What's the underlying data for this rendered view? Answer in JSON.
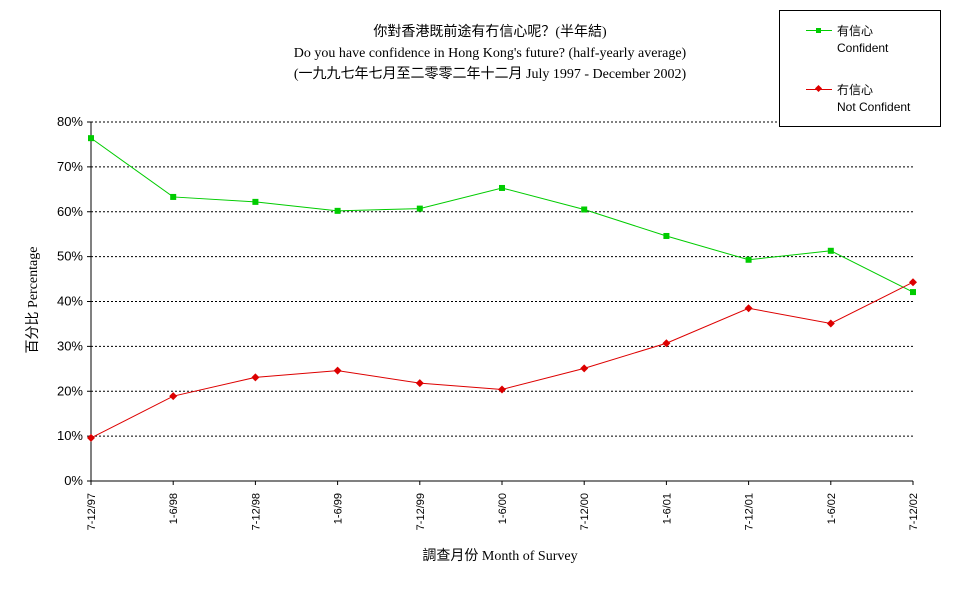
{
  "chart_data": {
    "type": "line",
    "title_lines": [
      "你對香港既前途有冇信心呢？(半年結)",
      "Do you have confidence in Hong Kong's future? (half-yearly average)",
      "(一九九七年七月至二零零二年十二月 July 1997 - December 2002)"
    ],
    "xlabel": "調查月份 Month of Survey",
    "ylabel": "百分比 Percentage",
    "categories": [
      "7-12/97",
      "1-6/98",
      "7-12/98",
      "1-6/99",
      "7-12/99",
      "1-6/00",
      "7-12/00",
      "1-6/01",
      "7-12/01",
      "1-6/02",
      "7-12/02"
    ],
    "ylim": [
      0,
      80
    ],
    "yticks": [
      "0%",
      "10%",
      "20%",
      "30%",
      "40%",
      "50%",
      "60%",
      "70%",
      "80%"
    ],
    "grid": true,
    "legend_position": "top-right",
    "series": [
      {
        "name": "有信心 Confident",
        "name_lines": [
          "有信心",
          "Confident"
        ],
        "color": "#00cc00",
        "marker": "square",
        "values": [
          76.4,
          63.3,
          62.2,
          60.2,
          60.7,
          65.3,
          60.5,
          54.6,
          49.3,
          51.3,
          42.1
        ]
      },
      {
        "name": "冇信心 Not Confident",
        "name_lines": [
          "冇信心",
          "Not Confident"
        ],
        "color": "#dd0000",
        "marker": "diamond",
        "values": [
          9.6,
          18.9,
          23.1,
          24.6,
          21.8,
          20.4,
          25.1,
          30.7,
          38.5,
          35.1,
          44.3
        ]
      }
    ]
  }
}
